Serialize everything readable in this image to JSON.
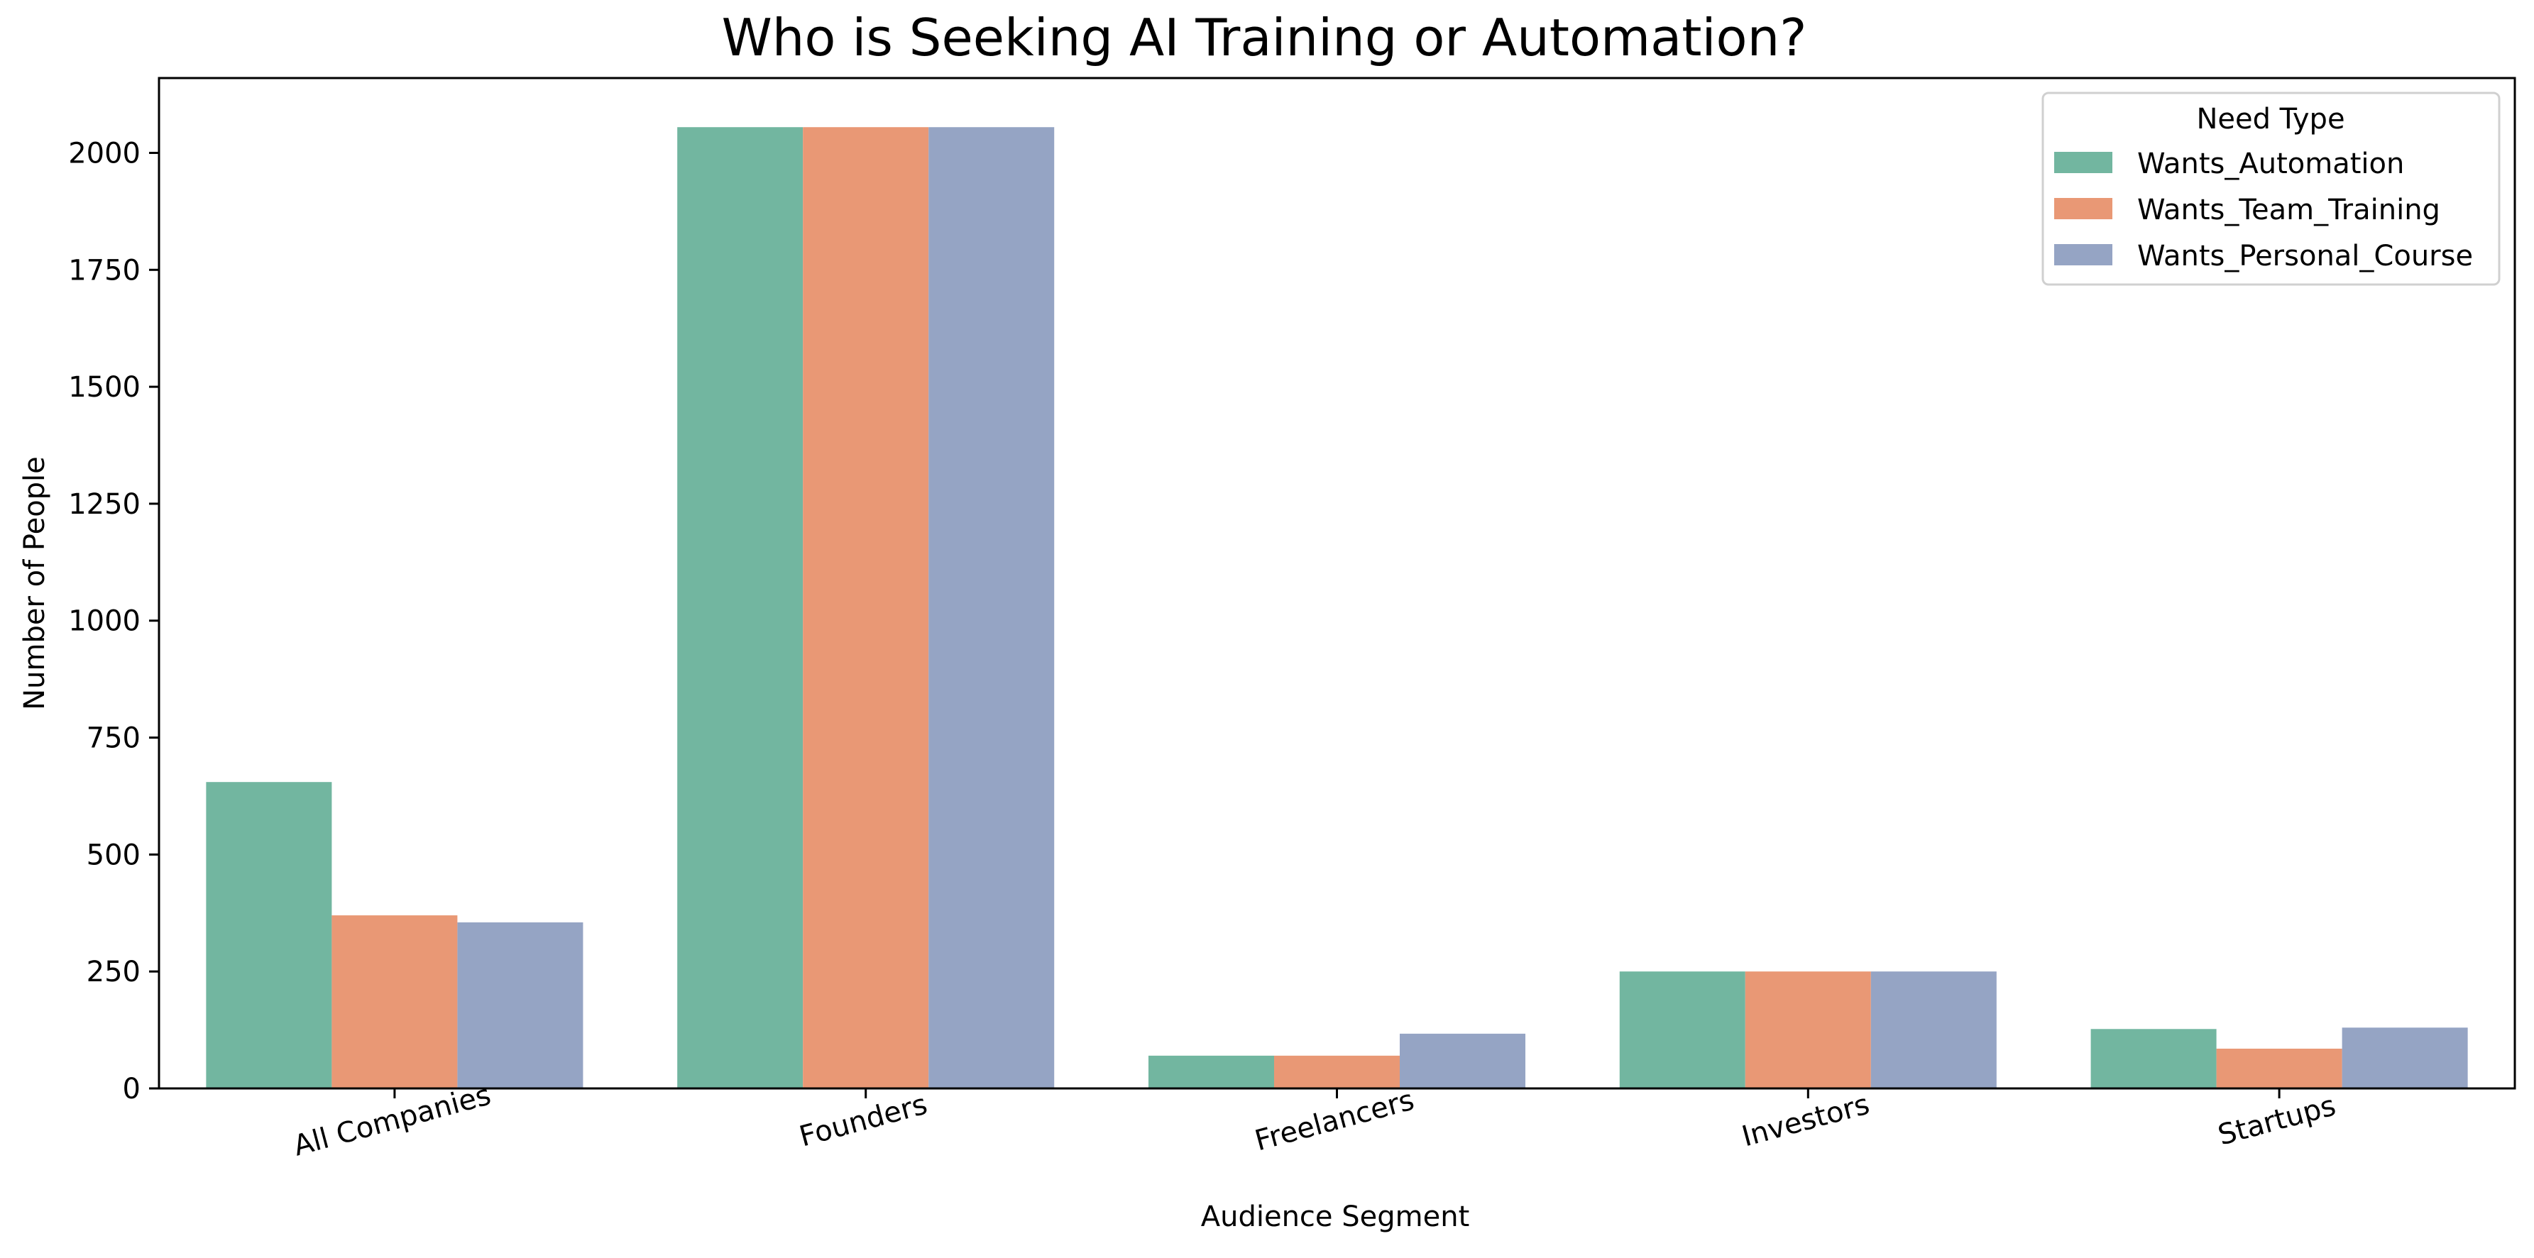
{
  "chart_data": {
    "type": "bar",
    "title": "Who is Seeking AI Training or Automation?",
    "xlabel": "Audience Segment",
    "ylabel": "Number of People",
    "categories": [
      "All Companies",
      "Founders",
      "Freelancers",
      "Investors",
      "Startups"
    ],
    "series": [
      {
        "name": "Wants_Automation",
        "color": "#72b6a0",
        "values": [
          655,
          2055,
          70,
          250,
          127
        ]
      },
      {
        "name": "Wants_Team_Training",
        "color": "#e99875",
        "values": [
          370,
          2055,
          70,
          250,
          85
        ]
      },
      {
        "name": "Wants_Personal_Course",
        "color": "#95a4c4",
        "values": [
          355,
          2055,
          117,
          250,
          130
        ]
      }
    ],
    "ylim": [
      0,
      2160
    ],
    "yticks": [
      0,
      250,
      500,
      750,
      1000,
      1250,
      1500,
      1750,
      2000
    ],
    "grid": false,
    "legend": {
      "title": "Need Type",
      "placement": "top-right"
    }
  }
}
